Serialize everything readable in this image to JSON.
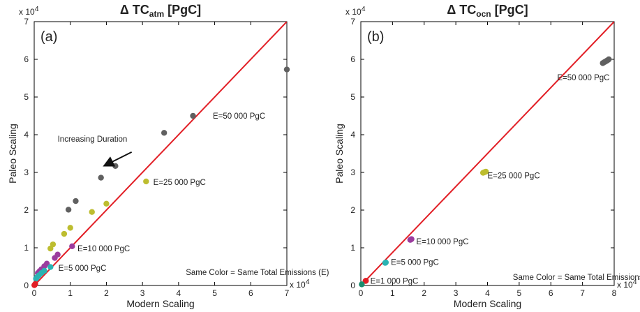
{
  "chart_data": [
    {
      "type": "scatter",
      "panel_label": "(a)",
      "title": "Δ TC",
      "title_sub": "atm",
      "title_unit": "[PgC]",
      "xlabel": "Modern Scaling",
      "ylabel": "Paleo Scaling",
      "x_exponent_base": "x 10",
      "x_exponent_power": "4",
      "y_exponent_base": "x 10",
      "y_exponent_power": "4",
      "xlim": [
        0,
        70000
      ],
      "ylim": [
        0,
        70000
      ],
      "xticks": [
        0,
        10000,
        20000,
        30000,
        40000,
        50000,
        60000,
        70000
      ],
      "xtick_labels": [
        "0",
        "1",
        "2",
        "3",
        "4",
        "5",
        "6",
        "7"
      ],
      "yticks": [
        0,
        10000,
        20000,
        30000,
        40000,
        50000,
        60000,
        70000
      ],
      "ytick_labels": [
        "0",
        "1",
        "2",
        "3",
        "4",
        "5",
        "6",
        "7"
      ],
      "line": {
        "name": "1:1",
        "x": [
          0,
          70000
        ],
        "y": [
          0,
          70000
        ],
        "color": "#e21f26"
      },
      "series": [
        {
          "color": "#606060",
          "x": [
            70000,
            44000,
            36000,
            22500,
            18500,
            11500,
            9500
          ],
          "y": [
            57300,
            45000,
            40500,
            31700,
            28600,
            22400,
            20100
          ]
        },
        {
          "color": "#bdbd2f",
          "x": [
            31000,
            20000,
            16000,
            10000,
            8300,
            5200,
            4500
          ],
          "y": [
            27600,
            21700,
            19500,
            15300,
            13700,
            10900,
            9800
          ]
        },
        {
          "color": "#9b3c9e",
          "x": [
            10500,
            6500,
            5700,
            3500,
            2800,
            2000,
            1500,
            1000
          ],
          "y": [
            10400,
            8200,
            7300,
            5800,
            5100,
            4300,
            3800,
            3300
          ]
        },
        {
          "color": "#2ab3b3",
          "x": [
            4500,
            2800,
            2000,
            1300,
            800,
            500
          ],
          "y": [
            4900,
            3900,
            3300,
            2700,
            2200,
            1800
          ]
        },
        {
          "color": "#e21f26",
          "x": [
            300,
            150,
            50
          ],
          "y": [
            400,
            200,
            80
          ]
        }
      ],
      "annotations": [
        {
          "text": "E=50 000 PgC",
          "x": 49500,
          "y": 45000
        },
        {
          "text": "E=25 000 PgC",
          "x": 33000,
          "y": 27400
        },
        {
          "text": "E=10 000 PgC",
          "x": 12000,
          "y": 9800
        },
        {
          "text": "E=5 000 PgC",
          "x": 6700,
          "y": 4600
        },
        {
          "text": "Increasing Duration",
          "x": 6500,
          "y": 38900
        },
        {
          "text": "Same Color = Same Total Emissions (E)",
          "x": 42000,
          "y": 3500
        }
      ],
      "arrow": {
        "from": [
          27000,
          35400
        ],
        "to": [
          19700,
          31900
        ]
      }
    },
    {
      "type": "scatter",
      "panel_label": "(b)",
      "title": "Δ TC",
      "title_sub": "ocn",
      "title_unit": "[PgC]",
      "xlabel": "Modern Scaling",
      "ylabel": "Paleo Scaling",
      "x_exponent_base": "x 10",
      "x_exponent_power": "4",
      "y_exponent_base": "x 10",
      "y_exponent_power": "4",
      "xlim": [
        0,
        80000
      ],
      "ylim": [
        0,
        70000
      ],
      "xticks": [
        0,
        10000,
        20000,
        30000,
        40000,
        50000,
        60000,
        70000,
        80000
      ],
      "xtick_labels": [
        "0",
        "1",
        "2",
        "3",
        "4",
        "5",
        "6",
        "7",
        "8"
      ],
      "yticks": [
        0,
        10000,
        20000,
        30000,
        40000,
        50000,
        60000,
        70000
      ],
      "ytick_labels": [
        "0",
        "1",
        "2",
        "3",
        "4",
        "5",
        "6",
        "7"
      ],
      "line": {
        "name": "1:1",
        "x": [
          0,
          80000
        ],
        "y": [
          0,
          70000
        ],
        "color": "#e21f26"
      },
      "series": [
        {
          "color": "#606060",
          "x": [
            76400,
            76800,
            77200,
            77600,
            78000,
            78300
          ],
          "y": [
            59000,
            59200,
            59400,
            59600,
            59800,
            60000
          ]
        },
        {
          "color": "#bdbd2f",
          "x": [
            38600,
            38900,
            39200,
            39500
          ],
          "y": [
            29900,
            30000,
            30100,
            30200
          ]
        },
        {
          "color": "#9b3c9e",
          "x": [
            15600,
            15800,
            16000
          ],
          "y": [
            12100,
            12200,
            12300
          ]
        },
        {
          "color": "#2ab3b3",
          "x": [
            7700,
            7900
          ],
          "y": [
            6000,
            6100
          ]
        },
        {
          "color": "#e21f26",
          "x": [
            1500,
            1600
          ],
          "y": [
            1200,
            1250
          ]
        },
        {
          "color": "#1a8c6e",
          "x": [
            300
          ],
          "y": [
            300
          ]
        }
      ],
      "annotations": [
        {
          "text": "E=50 000 PgC",
          "x": 62000,
          "y": 55200
        },
        {
          "text": "E=25 000 PgC",
          "x": 40000,
          "y": 29200
        },
        {
          "text": "E=10 000 PgC",
          "x": 17500,
          "y": 11700
        },
        {
          "text": "E=5 000 PgC",
          "x": 9500,
          "y": 6200
        },
        {
          "text": "E=1 000 PgC",
          "x": 3000,
          "y": 1200
        },
        {
          "text": "Same Color = Same Total Emissions (E)",
          "x": 48000,
          "y": 2200
        }
      ]
    }
  ]
}
